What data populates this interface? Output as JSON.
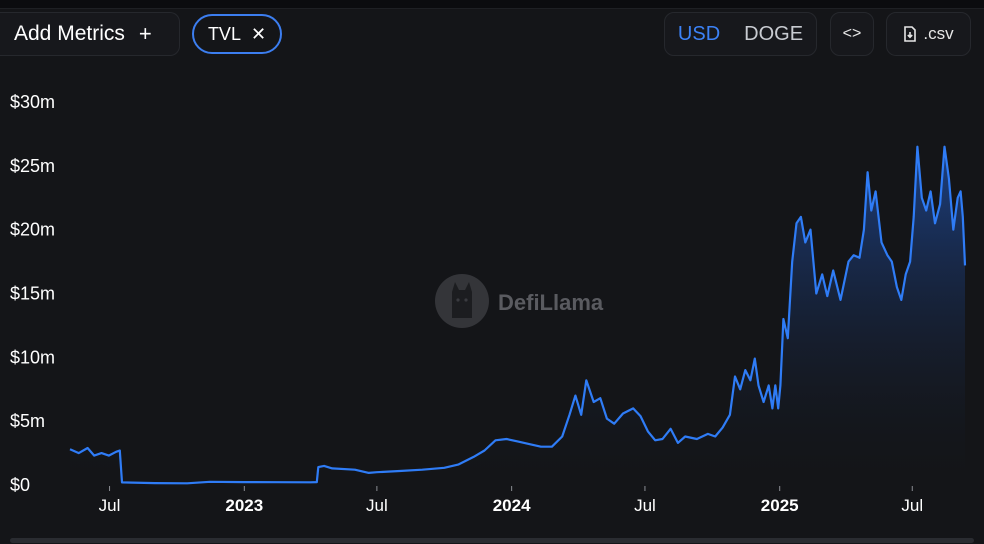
{
  "toolbar": {
    "add_metrics_label": "Add Metrics",
    "add_icon": "plus-icon",
    "metric_chip_label": "TVL",
    "chip_close_icon": "close-icon",
    "currency_options": [
      "USD",
      "DOGE"
    ],
    "currency_selected": "USD",
    "embed_icon": "code-icon",
    "csv_label": ".csv",
    "csv_icon": "file-download-icon"
  },
  "watermark": {
    "text": "DefiLlama",
    "icon": "llama-logo-icon"
  },
  "colors": {
    "line": "#2f7cf6",
    "accent": "#3c82f6",
    "background": "#141518"
  },
  "chart_data": {
    "type": "area",
    "title": "",
    "xlabel": "",
    "ylabel": "",
    "ylim": [
      0,
      30000000
    ],
    "yticks": [
      "$0",
      "$5m",
      "$10m",
      "$15m",
      "$20m",
      "$25m",
      "$30m"
    ],
    "xticks": [
      {
        "label": "Jul",
        "date": "2022-07-01",
        "major": false
      },
      {
        "label": "2023",
        "date": "2023-01-01",
        "major": true
      },
      {
        "label": "Jul",
        "date": "2023-07-01",
        "major": false
      },
      {
        "label": "2024",
        "date": "2024-01-01",
        "major": true
      },
      {
        "label": "Jul",
        "date": "2024-07-01",
        "major": false
      },
      {
        "label": "2025",
        "date": "2025-01-01",
        "major": true
      },
      {
        "label": "Jul",
        "date": "2025-07-01",
        "major": false
      }
    ],
    "grid": false,
    "series": [
      {
        "values": [
          [
            "2022-05-08",
            2800000
          ],
          [
            "2022-05-20",
            2500000
          ],
          [
            "2022-06-01",
            2900000
          ],
          [
            "2022-06-10",
            2300000
          ],
          [
            "2022-06-20",
            2500000
          ],
          [
            "2022-06-30",
            2300000
          ],
          [
            "2022-07-10",
            2600000
          ],
          [
            "2022-07-15",
            2700000
          ],
          [
            "2022-07-18",
            200000
          ],
          [
            "2022-09-01",
            150000
          ],
          [
            "2022-10-15",
            130000
          ],
          [
            "2022-11-15",
            250000
          ],
          [
            "2023-01-01",
            230000
          ],
          [
            "2023-02-15",
            220000
          ],
          [
            "2023-04-01",
            210000
          ],
          [
            "2023-04-10",
            230000
          ],
          [
            "2023-04-12",
            1400000
          ],
          [
            "2023-04-20",
            1500000
          ],
          [
            "2023-05-01",
            1300000
          ],
          [
            "2023-06-01",
            1200000
          ],
          [
            "2023-06-20",
            950000
          ],
          [
            "2023-07-01",
            1000000
          ],
          [
            "2023-08-01",
            1100000
          ],
          [
            "2023-09-01",
            1200000
          ],
          [
            "2023-10-01",
            1350000
          ],
          [
            "2023-10-20",
            1600000
          ],
          [
            "2023-11-10",
            2200000
          ],
          [
            "2023-11-25",
            2700000
          ],
          [
            "2023-12-10",
            3500000
          ],
          [
            "2023-12-25",
            3600000
          ],
          [
            "2024-01-10",
            3400000
          ],
          [
            "2024-01-25",
            3200000
          ],
          [
            "2024-02-10",
            3000000
          ],
          [
            "2024-02-25",
            3000000
          ],
          [
            "2024-03-10",
            3800000
          ],
          [
            "2024-03-20",
            5500000
          ],
          [
            "2024-03-28",
            7000000
          ],
          [
            "2024-04-05",
            5500000
          ],
          [
            "2024-04-12",
            8200000
          ],
          [
            "2024-04-22",
            6500000
          ],
          [
            "2024-05-01",
            6800000
          ],
          [
            "2024-05-10",
            5200000
          ],
          [
            "2024-05-20",
            4800000
          ],
          [
            "2024-06-01",
            5600000
          ],
          [
            "2024-06-15",
            6000000
          ],
          [
            "2024-06-25",
            5400000
          ],
          [
            "2024-07-05",
            4200000
          ],
          [
            "2024-07-15",
            3500000
          ],
          [
            "2024-07-25",
            3600000
          ],
          [
            "2024-08-05",
            4400000
          ],
          [
            "2024-08-15",
            3300000
          ],
          [
            "2024-08-25",
            3800000
          ],
          [
            "2024-09-10",
            3600000
          ],
          [
            "2024-09-25",
            4000000
          ],
          [
            "2024-10-05",
            3800000
          ],
          [
            "2024-10-15",
            4500000
          ],
          [
            "2024-10-25",
            5500000
          ],
          [
            "2024-11-01",
            8500000
          ],
          [
            "2024-11-08",
            7500000
          ],
          [
            "2024-11-15",
            9000000
          ],
          [
            "2024-11-22",
            8200000
          ],
          [
            "2024-11-28",
            9900000
          ],
          [
            "2024-12-03",
            7800000
          ],
          [
            "2024-12-10",
            6500000
          ],
          [
            "2024-12-17",
            7800000
          ],
          [
            "2024-12-22",
            6000000
          ],
          [
            "2024-12-26",
            7800000
          ],
          [
            "2024-12-30",
            6000000
          ],
          [
            "2025-01-02",
            7800000
          ],
          [
            "2025-01-06",
            13000000
          ],
          [
            "2025-01-12",
            11500000
          ],
          [
            "2025-01-18",
            17500000
          ],
          [
            "2025-01-24",
            20500000
          ],
          [
            "2025-01-30",
            21000000
          ],
          [
            "2025-02-05",
            19000000
          ],
          [
            "2025-02-12",
            20000000
          ],
          [
            "2025-02-20",
            15000000
          ],
          [
            "2025-02-28",
            16500000
          ],
          [
            "2025-03-07",
            14800000
          ],
          [
            "2025-03-15",
            16800000
          ],
          [
            "2025-03-25",
            14500000
          ],
          [
            "2025-04-05",
            17500000
          ],
          [
            "2025-04-12",
            18000000
          ],
          [
            "2025-04-20",
            17800000
          ],
          [
            "2025-04-26",
            20000000
          ],
          [
            "2025-05-01",
            24500000
          ],
          [
            "2025-05-06",
            21500000
          ],
          [
            "2025-05-12",
            23000000
          ],
          [
            "2025-05-20",
            19000000
          ],
          [
            "2025-05-28",
            18000000
          ],
          [
            "2025-06-03",
            17500000
          ],
          [
            "2025-06-10",
            15500000
          ],
          [
            "2025-06-16",
            14500000
          ],
          [
            "2025-06-22",
            16500000
          ],
          [
            "2025-06-28",
            17500000
          ],
          [
            "2025-07-03",
            21000000
          ],
          [
            "2025-07-08",
            26500000
          ],
          [
            "2025-07-14",
            22500000
          ],
          [
            "2025-07-20",
            21500000
          ],
          [
            "2025-07-26",
            23000000
          ],
          [
            "2025-08-01",
            20500000
          ],
          [
            "2025-08-08",
            22000000
          ],
          [
            "2025-08-14",
            26500000
          ],
          [
            "2025-08-20",
            24000000
          ],
          [
            "2025-08-26",
            20000000
          ],
          [
            "2025-09-01",
            22500000
          ],
          [
            "2025-09-05",
            23000000
          ],
          [
            "2025-09-08",
            21000000
          ],
          [
            "2025-09-11",
            17200000
          ]
        ]
      }
    ]
  }
}
